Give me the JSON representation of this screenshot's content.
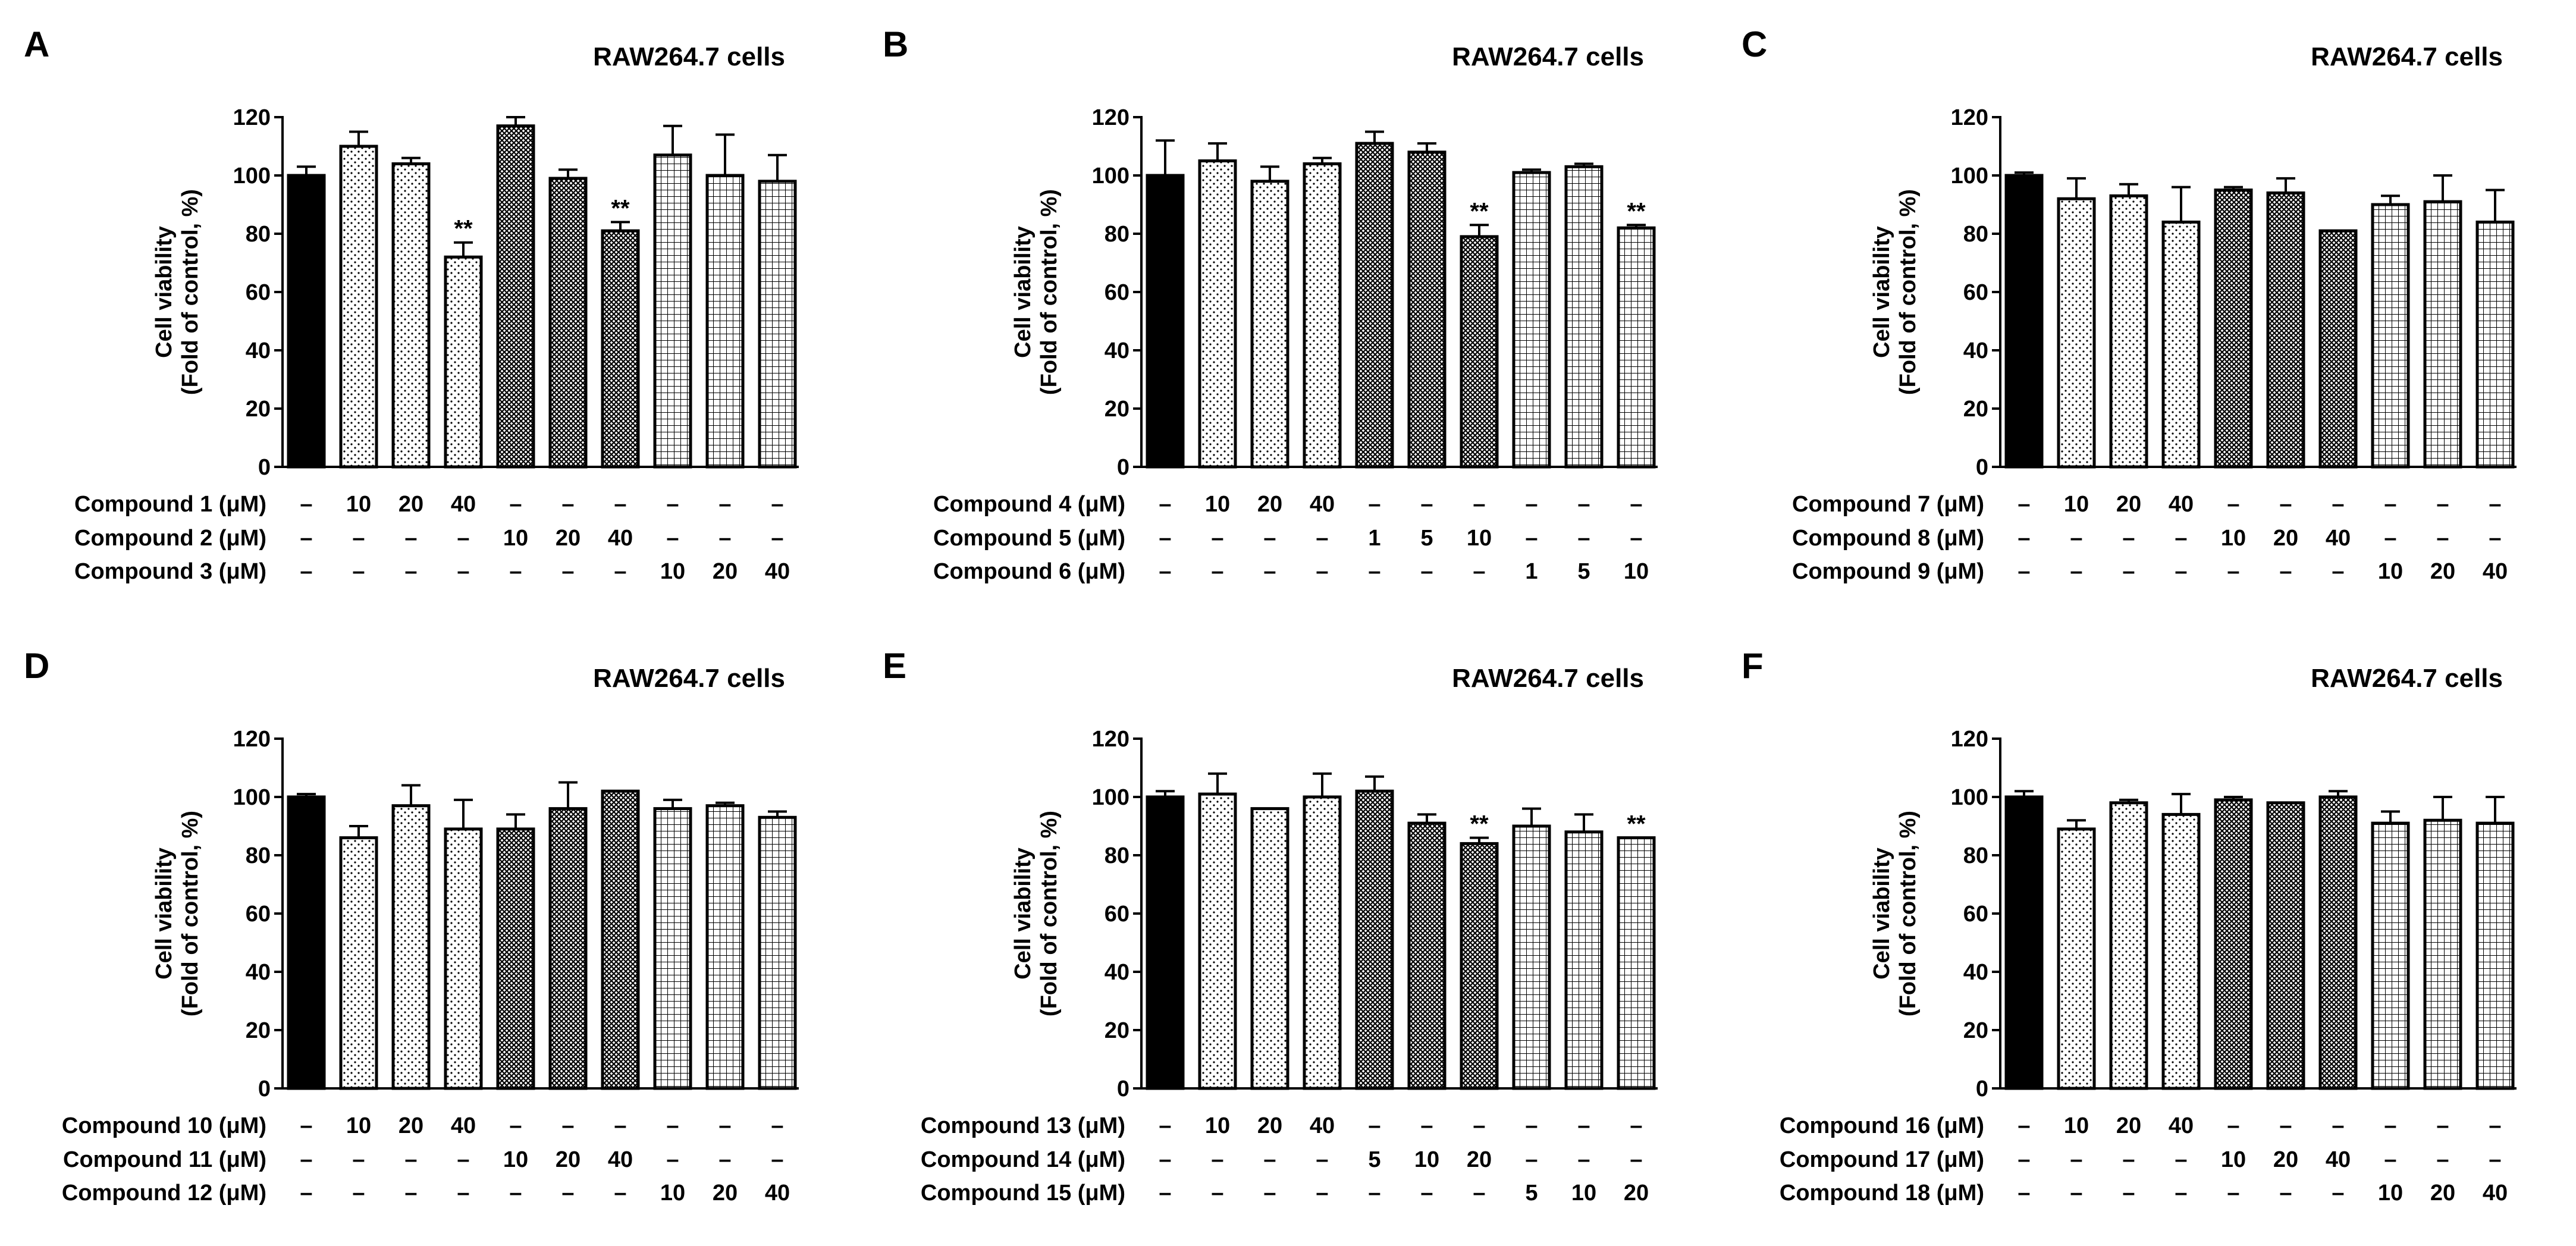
{
  "chart_data": [
    {
      "type": "bar",
      "panel_label": "A",
      "title": "RAW264.7 cells",
      "ylabel": "Cell viability\n(Fold of control, %)",
      "ylim": [
        0,
        120
      ],
      "yticks": [
        0,
        20,
        40,
        60,
        80,
        100,
        120
      ],
      "values": [
        100,
        110,
        104,
        72,
        117,
        99,
        81,
        107,
        100,
        98
      ],
      "errors": [
        3,
        5,
        2,
        5,
        3,
        3,
        3,
        10,
        14,
        9
      ],
      "patterns": [
        "solid",
        "dots-sparse",
        "dots-sparse",
        "dots-sparse",
        "crosshatch-dense",
        "crosshatch-dense",
        "crosshatch-dense",
        "grid",
        "grid",
        "grid"
      ],
      "significance": [
        "",
        "",
        "",
        "**",
        "",
        "",
        "**",
        "",
        "",
        ""
      ],
      "treatment_rows": [
        {
          "label": "Compound 1 (μM)",
          "cells": [
            "–",
            "10",
            "20",
            "40",
            "–",
            "–",
            "–",
            "–",
            "–",
            "–"
          ]
        },
        {
          "label": "Compound 2 (μM)",
          "cells": [
            "–",
            "–",
            "–",
            "–",
            "10",
            "20",
            "40",
            "–",
            "–",
            "–"
          ]
        },
        {
          "label": "Compound 3 (μM)",
          "cells": [
            "–",
            "–",
            "–",
            "–",
            "–",
            "–",
            "–",
            "10",
            "20",
            "40"
          ]
        }
      ]
    },
    {
      "type": "bar",
      "panel_label": "B",
      "title": "RAW264.7 cells",
      "ylabel": "Cell viability\n(Fold of control, %)",
      "ylim": [
        0,
        120
      ],
      "yticks": [
        0,
        20,
        40,
        60,
        80,
        100,
        120
      ],
      "values": [
        100,
        105,
        98,
        104,
        111,
        108,
        79,
        101,
        103,
        82
      ],
      "errors": [
        12,
        6,
        5,
        2,
        4,
        3,
        4,
        1,
        1,
        1
      ],
      "patterns": [
        "solid",
        "dots-sparse",
        "dots-sparse",
        "dots-sparse",
        "crosshatch-dense",
        "crosshatch-dense",
        "crosshatch-dense",
        "grid",
        "grid",
        "grid"
      ],
      "significance": [
        "",
        "",
        "",
        "",
        "",
        "",
        "**",
        "",
        "",
        "**"
      ],
      "treatment_rows": [
        {
          "label": "Compound 4 (μM)",
          "cells": [
            "–",
            "10",
            "20",
            "40",
            "–",
            "–",
            "–",
            "–",
            "–",
            "–"
          ]
        },
        {
          "label": "Compound 5 (μM)",
          "cells": [
            "–",
            "–",
            "–",
            "–",
            "1",
            "5",
            "10",
            "–",
            "–",
            "–"
          ]
        },
        {
          "label": "Compound 6 (μM)",
          "cells": [
            "–",
            "–",
            "–",
            "–",
            "–",
            "–",
            "–",
            "1",
            "5",
            "10"
          ]
        }
      ]
    },
    {
      "type": "bar",
      "panel_label": "C",
      "title": "RAW264.7 cells",
      "ylabel": "Cell viability\n(Fold of control, %)",
      "ylim": [
        0,
        120
      ],
      "yticks": [
        0,
        20,
        40,
        60,
        80,
        100,
        120
      ],
      "values": [
        100,
        92,
        93,
        84,
        95,
        94,
        81,
        90,
        91,
        84
      ],
      "errors": [
        1,
        7,
        4,
        12,
        1,
        5,
        0,
        3,
        9,
        11
      ],
      "patterns": [
        "solid",
        "dots-sparse",
        "dots-sparse",
        "dots-sparse",
        "crosshatch-dense",
        "crosshatch-dense",
        "crosshatch-dense",
        "grid",
        "grid",
        "grid"
      ],
      "significance": [
        "",
        "",
        "",
        "",
        "",
        "",
        "",
        "",
        "",
        ""
      ],
      "treatment_rows": [
        {
          "label": "Compound 7 (μM)",
          "cells": [
            "–",
            "10",
            "20",
            "40",
            "–",
            "–",
            "–",
            "–",
            "–",
            "–"
          ]
        },
        {
          "label": "Compound 8 (μM)",
          "cells": [
            "–",
            "–",
            "–",
            "–",
            "10",
            "20",
            "40",
            "–",
            "–",
            "–"
          ]
        },
        {
          "label": "Compound 9 (μM)",
          "cells": [
            "–",
            "–",
            "–",
            "–",
            "–",
            "–",
            "–",
            "10",
            "20",
            "40"
          ]
        }
      ]
    },
    {
      "type": "bar",
      "panel_label": "D",
      "title": "RAW264.7 cells",
      "ylabel": "Cell viability\n(Fold of control, %)",
      "ylim": [
        0,
        120
      ],
      "yticks": [
        0,
        20,
        40,
        60,
        80,
        100,
        120
      ],
      "values": [
        100,
        86,
        97,
        89,
        89,
        96,
        102,
        96,
        97,
        93
      ],
      "errors": [
        1,
        4,
        7,
        10,
        5,
        9,
        0,
        3,
        1,
        2
      ],
      "patterns": [
        "solid",
        "dots-sparse",
        "dots-sparse",
        "dots-sparse",
        "crosshatch-dense",
        "crosshatch-dense",
        "crosshatch-dense",
        "grid",
        "grid",
        "grid"
      ],
      "significance": [
        "",
        "",
        "",
        "",
        "",
        "",
        "",
        "",
        "",
        ""
      ],
      "treatment_rows": [
        {
          "label": "Compound 10 (μM)",
          "cells": [
            "–",
            "10",
            "20",
            "40",
            "–",
            "–",
            "–",
            "–",
            "–",
            "–"
          ]
        },
        {
          "label": "Compound 11 (μM)",
          "cells": [
            "–",
            "–",
            "–",
            "–",
            "10",
            "20",
            "40",
            "–",
            "–",
            "–"
          ]
        },
        {
          "label": "Compound 12 (μM)",
          "cells": [
            "–",
            "–",
            "–",
            "–",
            "–",
            "–",
            "–",
            "10",
            "20",
            "40"
          ]
        }
      ]
    },
    {
      "type": "bar",
      "panel_label": "E",
      "title": "RAW264.7 cells",
      "ylabel": "Cell viability\n(Fold of control, %)",
      "ylim": [
        0,
        120
      ],
      "yticks": [
        0,
        20,
        40,
        60,
        80,
        100,
        120
      ],
      "values": [
        100,
        101,
        96,
        100,
        102,
        91,
        84,
        90,
        88,
        86
      ],
      "errors": [
        2,
        7,
        0,
        8,
        5,
        3,
        2,
        6,
        6,
        0
      ],
      "patterns": [
        "solid",
        "dots-sparse",
        "dots-sparse",
        "dots-sparse",
        "crosshatch-dense",
        "crosshatch-dense",
        "crosshatch-dense",
        "grid",
        "grid",
        "grid"
      ],
      "significance": [
        "",
        "",
        "",
        "",
        "",
        "",
        "**",
        "",
        "",
        "**"
      ],
      "treatment_rows": [
        {
          "label": "Compound 13 (μM)",
          "cells": [
            "–",
            "10",
            "20",
            "40",
            "–",
            "–",
            "–",
            "–",
            "–",
            "–"
          ]
        },
        {
          "label": "Compound 14 (μM)",
          "cells": [
            "–",
            "–",
            "–",
            "–",
            "5",
            "10",
            "20",
            "–",
            "–",
            "–"
          ]
        },
        {
          "label": "Compound 15 (μM)",
          "cells": [
            "–",
            "–",
            "–",
            "–",
            "–",
            "–",
            "–",
            "5",
            "10",
            "20"
          ]
        }
      ]
    },
    {
      "type": "bar",
      "panel_label": "F",
      "title": "RAW264.7 cells",
      "ylabel": "Cell viability\n(Fold of control, %)",
      "ylim": [
        0,
        120
      ],
      "yticks": [
        0,
        20,
        40,
        60,
        80,
        100,
        120
      ],
      "values": [
        100,
        89,
        98,
        94,
        99,
        98,
        100,
        91,
        92,
        91
      ],
      "errors": [
        2,
        3,
        1,
        7,
        1,
        0,
        2,
        4,
        8,
        9
      ],
      "patterns": [
        "solid",
        "dots-sparse",
        "dots-sparse",
        "dots-sparse",
        "crosshatch-dense",
        "crosshatch-dense",
        "crosshatch-dense",
        "grid",
        "grid",
        "grid"
      ],
      "significance": [
        "",
        "",
        "",
        "",
        "",
        "",
        "",
        "",
        "",
        ""
      ],
      "treatment_rows": [
        {
          "label": "Compound 16 (μM)",
          "cells": [
            "–",
            "10",
            "20",
            "40",
            "–",
            "–",
            "–",
            "–",
            "–",
            "–"
          ]
        },
        {
          "label": "Compound 17 (μM)",
          "cells": [
            "–",
            "–",
            "–",
            "–",
            "10",
            "20",
            "40",
            "–",
            "–",
            "–"
          ]
        },
        {
          "label": "Compound 18 (μM)",
          "cells": [
            "–",
            "–",
            "–",
            "–",
            "–",
            "–",
            "–",
            "10",
            "20",
            "40"
          ]
        }
      ]
    }
  ],
  "colors": {
    "bar_stroke": "#000000",
    "solid_fill": "#000000",
    "background": "#ffffff"
  }
}
